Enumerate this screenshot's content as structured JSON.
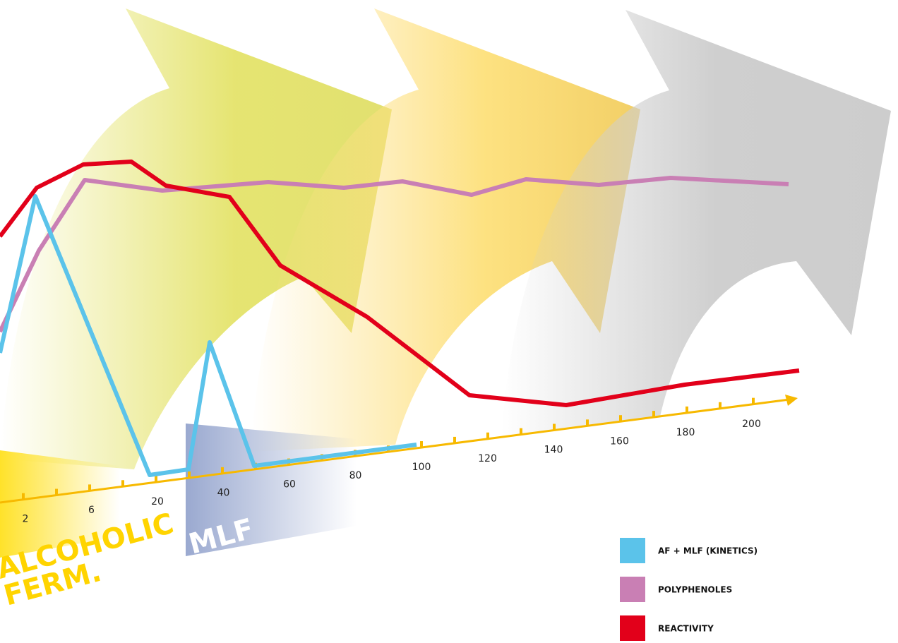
{
  "axis": {
    "ticks": [
      "2",
      "6",
      "20",
      "40",
      "60",
      "80",
      "100",
      "120",
      "140",
      "160",
      "180",
      "200"
    ]
  },
  "phases": {
    "af_line1": "ALCOHOLIC",
    "af_line2": "FERM.",
    "mlf": "MLF"
  },
  "legend": [
    "AF + MLF (KINETICS)",
    "POLYPHENOLES",
    "REACTIVITY"
  ]
}
